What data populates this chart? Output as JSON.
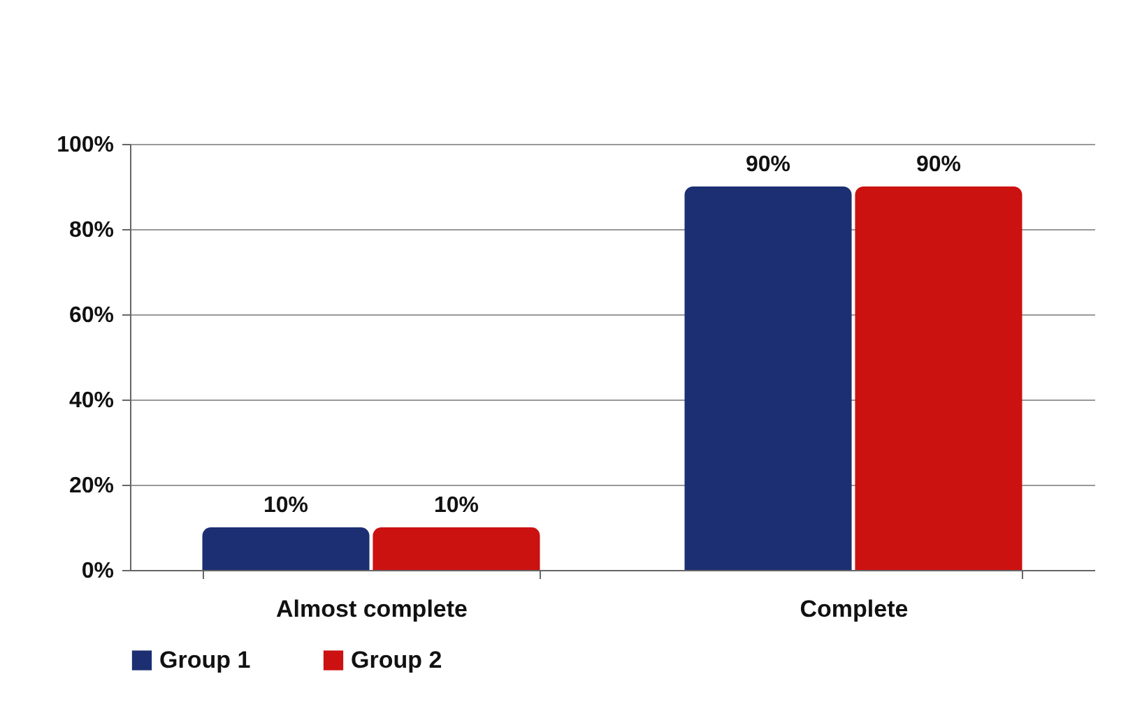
{
  "chart_data": {
    "type": "bar",
    "categories": [
      "Almost complete",
      "Complete"
    ],
    "series": [
      {
        "name": "Group 1",
        "color": "#1c2f72",
        "values": [
          10,
          90
        ],
        "value_labels": [
          "10%",
          "90%"
        ]
      },
      {
        "name": "Group 2",
        "color": "#cc1111",
        "values": [
          10,
          90
        ],
        "value_labels": [
          "10%",
          "90%"
        ]
      }
    ],
    "ylim": [
      0,
      100
    ],
    "yticks": [
      {
        "value": 0,
        "label": "0%"
      },
      {
        "value": 20,
        "label": "20%"
      },
      {
        "value": 40,
        "label": "40%"
      },
      {
        "value": 60,
        "label": "60%"
      },
      {
        "value": 80,
        "label": "80%"
      },
      {
        "value": 100,
        "label": "100%"
      }
    ],
    "grid": "y",
    "legend": "bottom"
  }
}
